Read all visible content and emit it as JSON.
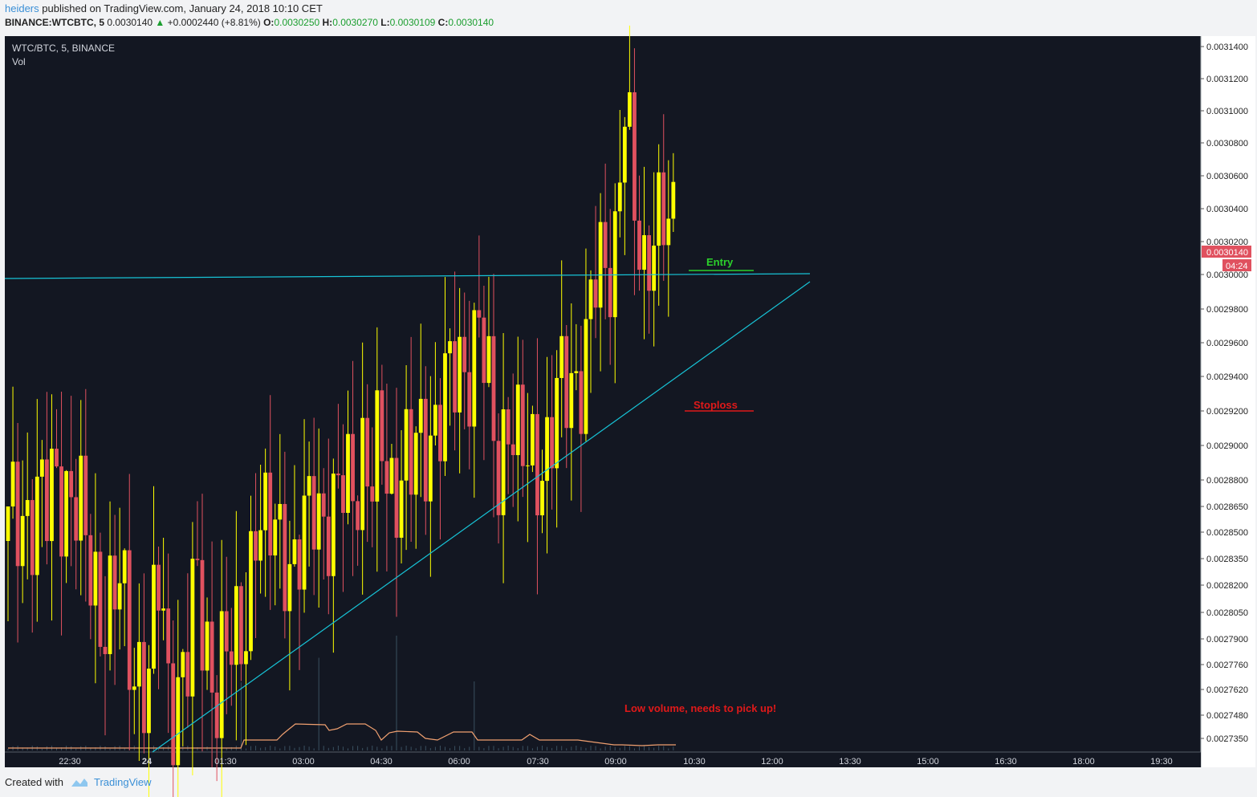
{
  "header": {
    "author": "heiders",
    "published": "published on TradingView.com, January 24, 2018 10:10 CET"
  },
  "symbol_bar": {
    "symbol": "BINANCE:WTCBTC, 5",
    "price": "0.0030140",
    "change": "+0.0002440 (+8.81%)",
    "o_label": "O:",
    "o": "0.0030250",
    "h_label": "H:",
    "h": "0.0030270",
    "l_label": "L:",
    "l": "0.0030109",
    "c_label": "C:",
    "c": "0.0030140"
  },
  "legend": {
    "title": "WTC/BTC, 5, BINANCE",
    "indicator": "Vol"
  },
  "price_badge": {
    "value": "0.0030140",
    "countdown": "04:24"
  },
  "annotations": {
    "entry": "Entry",
    "stoploss": "Stoploss",
    "volume_note": "Low volume, needs to pick up!"
  },
  "footer": {
    "created_with": "Created with",
    "brand": "TradingView"
  },
  "colors": {
    "background": "#131722",
    "bull": "#ffff00",
    "bear": "#e0515f",
    "trendline": "#17c3d6",
    "entry": "#2bd12b",
    "stoploss": "#e01919",
    "volume": "#f0a070"
  },
  "chart_data": {
    "type": "candlestick",
    "ytick_labels": [
      "0.0031400",
      "0.0031200",
      "0.0031000",
      "0.0030800",
      "0.0030600",
      "0.0030400",
      "0.0030200",
      "0.0030000",
      "0.0029800",
      "0.0029600",
      "0.0029400",
      "0.0029200",
      "0.0029000",
      "0.0028800",
      "0.0028650",
      "0.0028500",
      "0.0028350",
      "0.0028200",
      "0.0028050",
      "0.0027900",
      "0.0027760",
      "0.0027620",
      "0.0027480",
      "0.0027350"
    ],
    "xtick_labels": [
      "22:30",
      "24",
      "01:30",
      "03:00",
      "04:30",
      "06:00",
      "07:30",
      "09:00",
      "10:30",
      "12:00",
      "13:30",
      "15:00",
      "16:30",
      "18:00",
      "19:30"
    ],
    "close_path": [
      [
        0,
        0.002847
      ],
      [
        3,
        0.002867
      ],
      [
        6,
        0.002864
      ],
      [
        8,
        0.002858
      ],
      [
        10,
        0.002887
      ],
      [
        13,
        0.002872
      ],
      [
        15,
        0.002849
      ],
      [
        17,
        0.00283
      ],
      [
        19,
        0.002815
      ],
      [
        21,
        0.002804
      ],
      [
        23,
        0.002814
      ],
      [
        25,
        0.00279
      ],
      [
        27,
        0.002778
      ],
      [
        29,
        0.002762
      ],
      [
        31,
        0.00282
      ],
      [
        33,
        0.00277
      ],
      [
        35,
        0.002766
      ],
      [
        37,
        0.002774
      ],
      [
        39,
        0.002818
      ],
      [
        41,
        0.00279
      ],
      [
        43,
        0.002767
      ],
      [
        45,
        0.002774
      ],
      [
        47,
        0.002785
      ],
      [
        49,
        0.002815
      ],
      [
        51,
        0.002855
      ],
      [
        53,
        0.002838
      ],
      [
        55,
        0.00286
      ],
      [
        57,
        0.002851
      ],
      [
        59,
        0.00282
      ],
      [
        61,
        0.002842
      ],
      [
        63,
        0.002878
      ],
      [
        65,
        0.002865
      ],
      [
        67,
        0.00285
      ],
      [
        69,
        0.002874
      ],
      [
        71,
        0.002885
      ],
      [
        73,
        0.002898
      ],
      [
        75,
        0.00287
      ],
      [
        77,
        0.002899
      ],
      [
        79,
        0.00288
      ],
      [
        81,
        0.00289
      ],
      [
        83,
        0.00288
      ],
      [
        85,
        0.002901
      ],
      [
        87,
        0.002915
      ],
      [
        89,
        0.00292
      ],
      [
        91,
        0.00293
      ],
      [
        93,
        0.002947
      ],
      [
        95,
        0.002956
      ],
      [
        97,
        0.002968
      ],
      [
        99,
        0.00292
      ],
      [
        101,
        0.00289
      ],
      [
        103,
        0.002928
      ],
      [
        105,
        0.002893
      ],
      [
        107,
        0.002885
      ],
      [
        109,
        0.002898
      ],
      [
        111,
        0.0029
      ],
      [
        113,
        0.002918
      ],
      [
        115,
        0.002933
      ],
      [
        117,
        0.002944
      ],
      [
        119,
        0.00296
      ],
      [
        121,
        0.002992
      ],
      [
        123,
        0.003
      ],
      [
        125,
        0.00303
      ],
      [
        127,
        0.00311
      ],
      [
        129,
        0.003025
      ],
      [
        131,
        0.003
      ],
      [
        133,
        0.003046
      ],
      [
        135,
        0.00303
      ],
      [
        137,
        0.003014
      ]
    ],
    "trendlines": [
      {
        "label": "horizontal",
        "points": [
          [
            -1,
            0.002999
          ],
          [
            165,
            0.003001
          ]
        ]
      },
      {
        "label": "ascending",
        "points": [
          [
            29,
            0.002731
          ],
          [
            165,
            0.002995
          ]
        ]
      }
    ],
    "entry_level": 0.003001,
    "stoploss_level": 0.00292
  }
}
